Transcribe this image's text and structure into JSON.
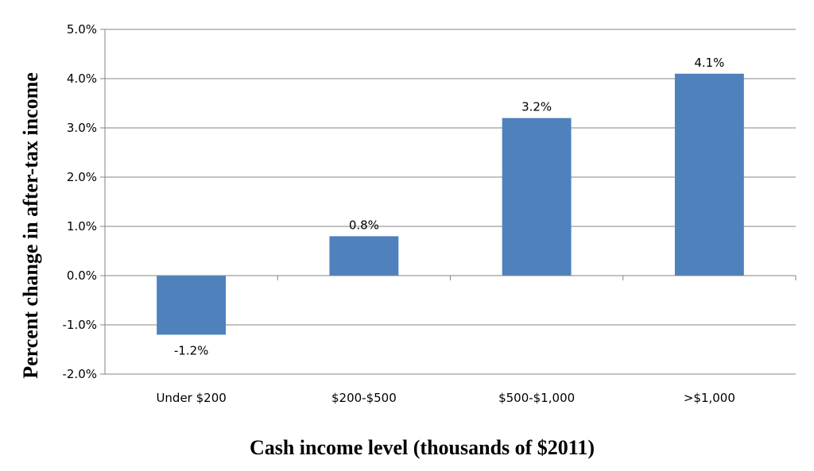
{
  "chart_data": {
    "type": "bar",
    "title": "",
    "xlabel": "Cash income level (thousands of $2011)",
    "ylabel": "Percent change in after-tax income",
    "categories": [
      "Under $200",
      "$200-$500",
      "$500-$1,000",
      ">$1,000"
    ],
    "values": [
      -1.2,
      0.8,
      3.2,
      4.1
    ],
    "data_labels": [
      "-1.2%",
      "0.8%",
      "3.2%",
      "4.1%"
    ],
    "ylim": [
      -2.0,
      5.0
    ],
    "y_ticks": [
      5.0,
      4.0,
      3.0,
      2.0,
      1.0,
      0.0,
      -1.0,
      -2.0
    ],
    "y_tick_labels": [
      "5.0%",
      "4.0%",
      "3.0%",
      "2.0%",
      "1.0%",
      "0.0%",
      "-1.0%",
      "-2.0%"
    ],
    "grid": true,
    "legend": "none",
    "bar_color": "#4F81BD"
  }
}
